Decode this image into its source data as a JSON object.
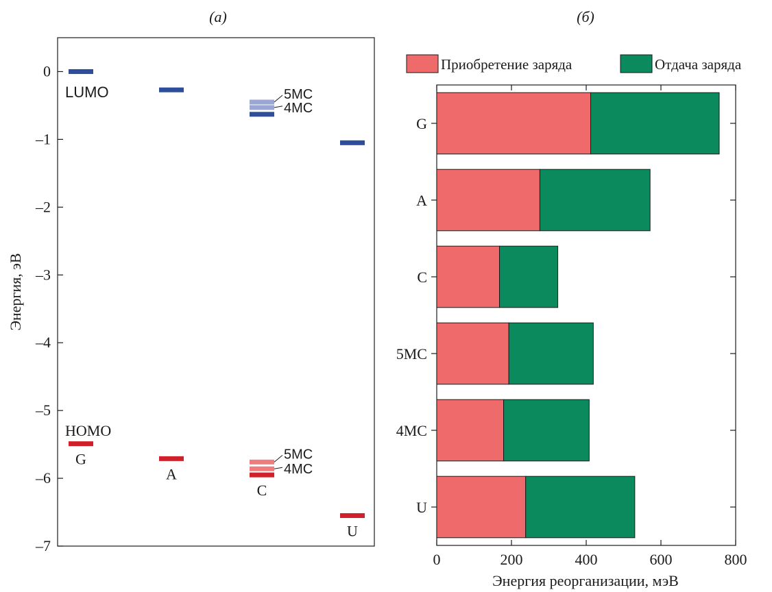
{
  "chart_data": [
    {
      "type": "scatter",
      "panel_label": "(а)",
      "ylabel": "Энергия, эВ",
      "ylim": [
        -7,
        0.5
      ],
      "yticks": [
        0,
        -1,
        -2,
        -3,
        -4,
        -5,
        -6,
        -7
      ],
      "ytick_labels": [
        "0",
        "–1",
        "–2",
        "–3",
        "–4",
        "–5",
        "–6",
        "–7"
      ],
      "columns": [
        "G",
        "A",
        "C",
        "U"
      ],
      "lumo_label": "LUMO",
      "homo_label": "HOMO",
      "lumo_color": "#2e4e9c",
      "lumo_light_color": "#9aa6d3",
      "homo_color": "#d0202a",
      "homo_light_color": "#ef7d7d",
      "levels": [
        {
          "column": "G",
          "type": "LUMO",
          "value": 0.0
        },
        {
          "column": "A",
          "type": "LUMO",
          "value": -0.27
        },
        {
          "column": "C",
          "type": "LUMO",
          "value": -0.45,
          "variant": "5MC",
          "light": true
        },
        {
          "column": "C",
          "type": "LUMO",
          "value": -0.53,
          "variant": "4MC",
          "light": true
        },
        {
          "column": "C",
          "type": "LUMO",
          "value": -0.63
        },
        {
          "column": "U",
          "type": "LUMO",
          "value": -1.05
        },
        {
          "column": "G",
          "type": "HOMO",
          "value": -5.49
        },
        {
          "column": "A",
          "type": "HOMO",
          "value": -5.71
        },
        {
          "column": "C",
          "type": "HOMO",
          "value": -5.76,
          "variant": "5MC",
          "light": true
        },
        {
          "column": "C",
          "type": "HOMO",
          "value": -5.86,
          "variant": "4MC",
          "light": true
        },
        {
          "column": "C",
          "type": "HOMO",
          "value": -5.95
        },
        {
          "column": "U",
          "type": "HOMO",
          "value": -6.55
        }
      ],
      "annotations": {
        "lumo": [
          "5MC",
          "4MC"
        ],
        "homo": [
          "5MC",
          "4MC"
        ]
      }
    },
    {
      "type": "bar",
      "orientation": "horizontal",
      "stacked": true,
      "panel_label": "(б)",
      "xlabel": "Энергия реорганизации, мэВ",
      "xlim": [
        0,
        800
      ],
      "xticks": [
        0,
        200,
        400,
        600,
        800
      ],
      "categories": [
        "G",
        "A",
        "C",
        "5MC",
        "4MC",
        "U"
      ],
      "series": [
        {
          "name": "Приобретение заряда",
          "color": "#ef6b6b",
          "values": [
            412,
            276,
            168,
            193,
            179,
            238
          ]
        },
        {
          "name": "Отдача заряда",
          "color": "#0b8a5e",
          "values": [
            344,
            295,
            156,
            226,
            229,
            292
          ]
        }
      ],
      "legend_position": "top"
    }
  ]
}
